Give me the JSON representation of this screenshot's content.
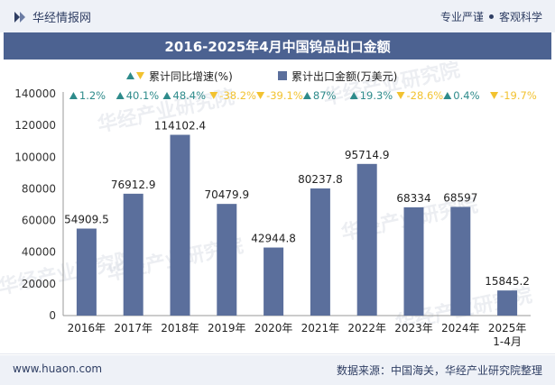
{
  "header": {
    "brand": "华经情报网",
    "tagline_left": "专业严谨",
    "tagline_right": "客观科学"
  },
  "watermark": "华经产业研究院",
  "chart_data": {
    "type": "bar",
    "title": "2016-2025年4月中国钨品出口金额",
    "categories": [
      "2016年",
      "2017年",
      "2018年",
      "2019年",
      "2020年",
      "2021年",
      "2022年",
      "2023年",
      "2024年",
      "2025年\n1-4月"
    ],
    "series": [
      {
        "name": "累计出口金额(万美元)",
        "values": [
          54909.5,
          76912.9,
          114102.4,
          70479.9,
          42944.8,
          80237.8,
          95714.9,
          68334,
          68597,
          15845.2
        ],
        "value_labels": [
          "54909.5",
          "76912.9",
          "114102.4",
          "70479.9",
          "42944.8",
          "80237.8",
          "95714.9",
          "68334",
          "68597",
          "15845.2"
        ]
      },
      {
        "name": "累计同比增速(%)",
        "values": [
          1.2,
          40.1,
          48.4,
          -38.2,
          -39.1,
          87,
          19.3,
          -28.6,
          0.4,
          -19.7
        ],
        "value_labels": [
          "1.2%",
          "40.1%",
          "48.4%",
          "-38.2%",
          "-39.1%",
          "87%",
          "19.3%",
          "-28.6%",
          "0.4%",
          "-19.7%"
        ]
      }
    ],
    "ylim": [
      0,
      140000
    ],
    "yticks": [
      0,
      20000,
      40000,
      60000,
      80000,
      100000,
      120000,
      140000
    ],
    "legend_position": "top-center",
    "grid": false,
    "colors": {
      "bar": "#5b6f9c",
      "up": "#2e8b8b",
      "down": "#f2c230"
    }
  },
  "footer": {
    "website": "www.huaon.com",
    "source": "数据来源：中国海关，华经产业研究院整理"
  }
}
